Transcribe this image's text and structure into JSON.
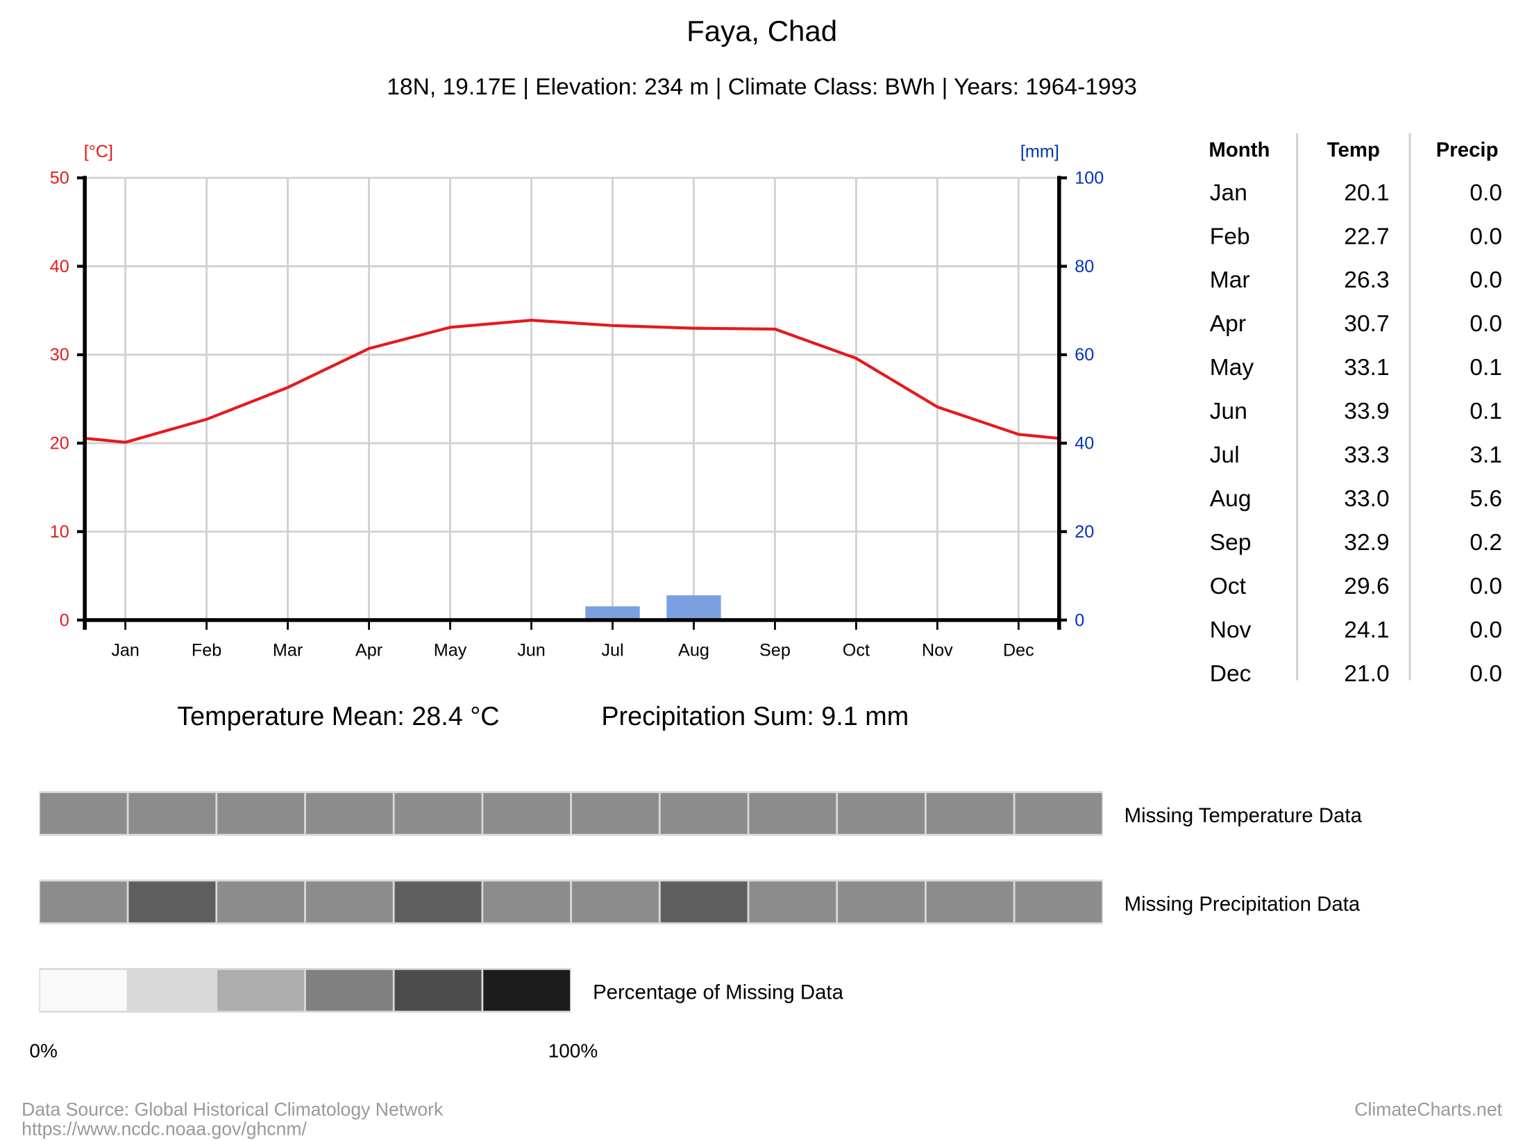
{
  "title": "Faya, Chad",
  "subtitle": "18N, 19.17E | Elevation: 234 m | Climate Class: BWh | Years: 1964-1993",
  "colors": {
    "temp": "#e41a1c",
    "precip": "#7b9fe0",
    "precip_axis": "#0033bb",
    "grid": "#d0d0d0"
  },
  "chart_data": {
    "type": "line+bar",
    "categories": [
      "Jan",
      "Feb",
      "Mar",
      "Apr",
      "May",
      "Jun",
      "Jul",
      "Aug",
      "Sep",
      "Oct",
      "Nov",
      "Dec"
    ],
    "series": [
      {
        "name": "Temp",
        "type": "line",
        "axis": "left",
        "values": [
          20.1,
          22.7,
          26.3,
          30.7,
          33.1,
          33.9,
          33.3,
          33.0,
          32.9,
          29.6,
          24.1,
          21.0
        ]
      },
      {
        "name": "Precip",
        "type": "bar",
        "axis": "right",
        "values": [
          0.0,
          0.0,
          0.0,
          0.0,
          0.1,
          0.1,
          3.1,
          5.6,
          0.2,
          0.0,
          0.0,
          0.0
        ]
      }
    ],
    "y_left": {
      "label": "[°C]",
      "range": [
        0,
        50
      ],
      "ticks": [
        "0",
        "10",
        "20",
        "30",
        "40",
        "50"
      ]
    },
    "y_right": {
      "label": "[mm]",
      "range": [
        0,
        100
      ],
      "ticks": [
        "0",
        "20",
        "40",
        "60",
        "80",
        "100"
      ]
    },
    "grid": true
  },
  "table": {
    "headers": [
      "Month",
      "Temp",
      "Precip"
    ],
    "rows": [
      [
        "Jan",
        "20.1",
        "0.0"
      ],
      [
        "Feb",
        "22.7",
        "0.0"
      ],
      [
        "Mar",
        "26.3",
        "0.0"
      ],
      [
        "Apr",
        "30.7",
        "0.0"
      ],
      [
        "May",
        "33.1",
        "0.1"
      ],
      [
        "Jun",
        "33.9",
        "0.1"
      ],
      [
        "Jul",
        "33.3",
        "3.1"
      ],
      [
        "Aug",
        "33.0",
        "5.6"
      ],
      [
        "Sep",
        "32.9",
        "0.2"
      ],
      [
        "Oct",
        "29.6",
        "0.0"
      ],
      [
        "Nov",
        "24.1",
        "0.0"
      ],
      [
        "Dec",
        "21.0",
        "0.0"
      ]
    ]
  },
  "summary": {
    "temp_mean": "Temperature Mean: 28.4 °C",
    "precip_sum": "Precipitation Sum: 9.1 mm"
  },
  "missing": {
    "temp_label": "Missing Temperature Data",
    "precip_label": "Missing Precipitation Data",
    "legend_label": "Percentage of Missing Data",
    "legend_min": "0%",
    "legend_max": "100%",
    "temp_colors": [
      "#8c8c8c",
      "#8c8c8c",
      "#8c8c8c",
      "#8c8c8c",
      "#8c8c8c",
      "#8c8c8c",
      "#8c8c8c",
      "#8c8c8c",
      "#8c8c8c",
      "#8c8c8c",
      "#8c8c8c",
      "#8c8c8c"
    ],
    "precip_colors": [
      "#8c8c8c",
      "#5e5e5e",
      "#8c8c8c",
      "#8c8c8c",
      "#5e5e5e",
      "#8c8c8c",
      "#8c8c8c",
      "#5e5e5e",
      "#8c8c8c",
      "#8c8c8c",
      "#8c8c8c",
      "#8c8c8c"
    ],
    "legend_colors": [
      "#f9f9f9",
      "#d9d9d9",
      "#adadad",
      "#808080",
      "#4b4b4b",
      "#1c1c1c"
    ]
  },
  "footer": {
    "source": "Data Source: Global Historical Climatology Network",
    "url": "https://www.ncdc.noaa.gov/ghcnm/",
    "brand": "ClimateCharts.net"
  }
}
